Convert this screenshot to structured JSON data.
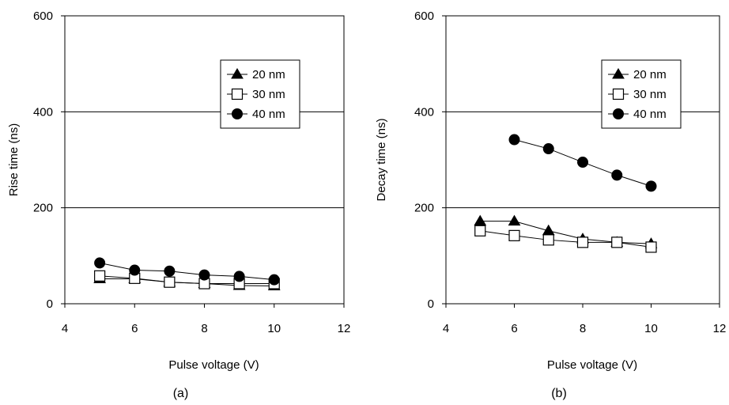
{
  "chart_data": [
    {
      "type": "line",
      "panel_label": "(a)",
      "xlabel": "Pulse voltage (V)",
      "ylabel": "Rise time (ns)",
      "xlim": [
        4,
        12
      ],
      "ylim": [
        0,
        600
      ],
      "xticks": [
        "4",
        "6",
        "8",
        "10",
        "12"
      ],
      "yticks": [
        "0",
        "200",
        "400",
        "600"
      ],
      "grid": "horizontal",
      "legend_position": "top-right",
      "series": [
        {
          "name": "20 nm",
          "marker": "triangle-filled",
          "x": [
            5,
            6,
            7,
            8,
            9,
            10
          ],
          "y": [
            52,
            52,
            45,
            42,
            38,
            37
          ]
        },
        {
          "name": "30 nm",
          "marker": "square-open",
          "x": [
            5,
            6,
            7,
            8,
            9,
            10
          ],
          "y": [
            58,
            53,
            45,
            42,
            42,
            42
          ]
        },
        {
          "name": "40 nm",
          "marker": "circle-filled",
          "x": [
            5,
            6,
            7,
            8,
            9,
            10
          ],
          "y": [
            85,
            70,
            68,
            60,
            57,
            50
          ]
        }
      ]
    },
    {
      "type": "line",
      "panel_label": "(b)",
      "xlabel": "Pulse voltage (V)",
      "ylabel": "Decay time (ns)",
      "xlim": [
        4,
        12
      ],
      "ylim": [
        0,
        600
      ],
      "xticks": [
        "4",
        "6",
        "8",
        "10",
        "12"
      ],
      "yticks": [
        "0",
        "200",
        "400",
        "600"
      ],
      "grid": "horizontal",
      "legend_position": "top-right",
      "series": [
        {
          "name": "20 nm",
          "marker": "triangle-filled",
          "x": [
            5,
            6,
            7,
            8,
            9,
            10
          ],
          "y": [
            172,
            172,
            152,
            135,
            128,
            125
          ]
        },
        {
          "name": "30 nm",
          "marker": "square-open",
          "x": [
            5,
            6,
            7,
            8,
            9,
            10
          ],
          "y": [
            152,
            142,
            133,
            128,
            128,
            118
          ]
        },
        {
          "name": "40 nm",
          "marker": "circle-filled",
          "x": [
            6,
            7,
            8,
            9,
            10
          ],
          "y": [
            342,
            323,
            295,
            268,
            245
          ]
        }
      ]
    }
  ]
}
